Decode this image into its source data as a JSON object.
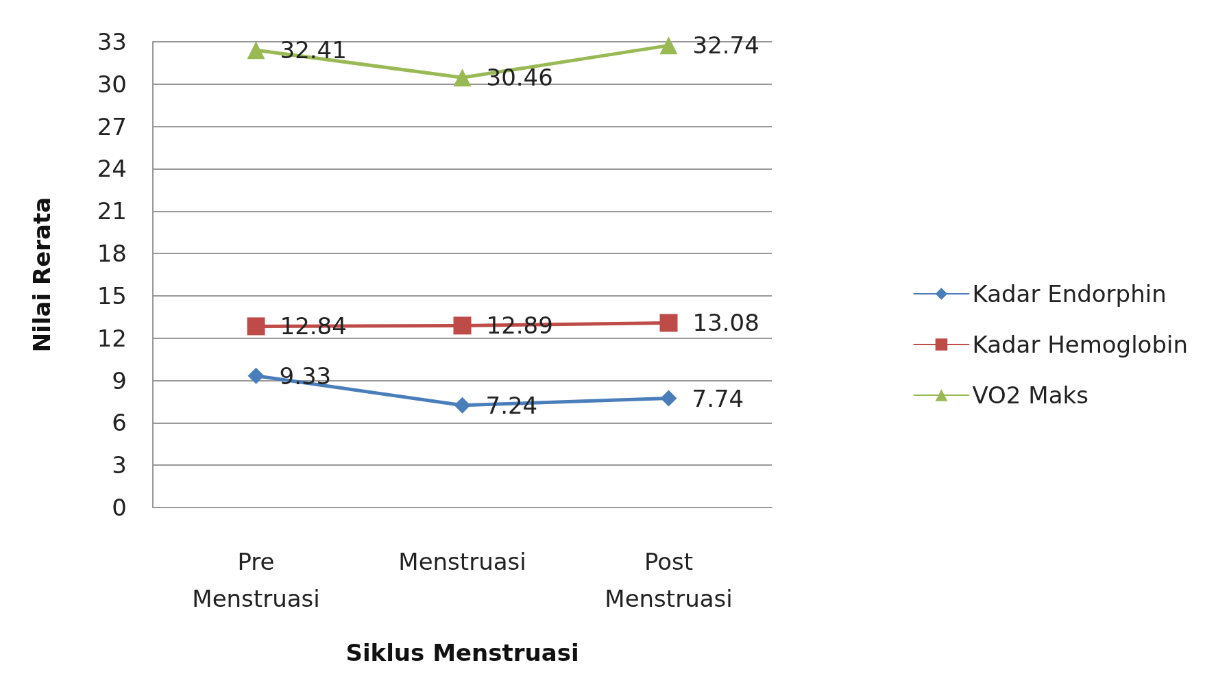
{
  "chart_data": {
    "type": "line",
    "xlabel": "Siklus Menstruasi",
    "ylabel": "Nilai Rerata",
    "categories": [
      "Pre\nMenstruasi",
      "Menstruasi",
      "Post\nMenstruasi"
    ],
    "series": [
      {
        "name": "Kadar Endorphin",
        "color": "#4a7ebb",
        "marker": "diamond",
        "values": [
          9.33,
          7.24,
          7.74
        ]
      },
      {
        "name": "Kadar Hemoglobin",
        "color": "#be4b48",
        "marker": "square",
        "values": [
          12.84,
          12.89,
          13.08
        ]
      },
      {
        "name": "VO2 Maks",
        "color": "#98b954",
        "marker": "triangle",
        "values": [
          32.41,
          30.46,
          32.74
        ]
      }
    ],
    "ylim": [
      0,
      33
    ],
    "yticks": [
      0,
      3,
      6,
      9,
      12,
      15,
      18,
      21,
      24,
      27,
      30,
      33
    ],
    "grid": "y",
    "legend": "right",
    "data_labels": true
  }
}
